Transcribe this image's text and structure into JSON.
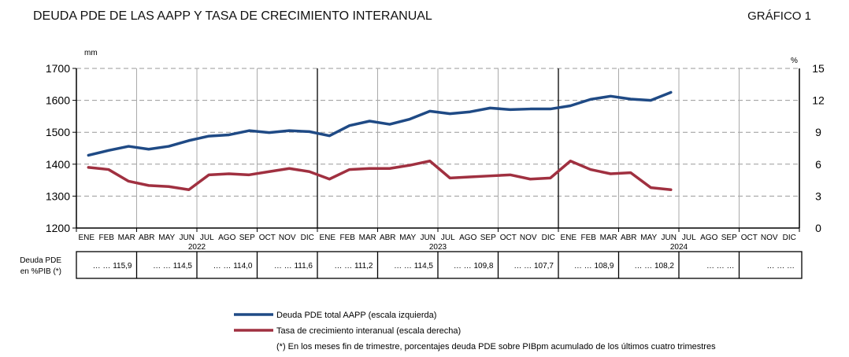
{
  "header": {
    "title": "DEUDA PDE DE LAS AAPP Y TASA DE CRECIMIENTO  INTERANUAL",
    "figure_label": "GRÁFICO 1"
  },
  "chart_data": {
    "type": "line",
    "left_unit": "mm",
    "right_unit": "%",
    "ylim_left": [
      1200,
      1700
    ],
    "yticks_left": [
      "1200",
      "1300",
      "1400",
      "1500",
      "1600",
      "1700"
    ],
    "ylim_right": [
      0,
      15
    ],
    "yticks_right": [
      "0",
      "3",
      "6",
      "9",
      "12",
      "15"
    ],
    "months": [
      "ENE",
      "FEB",
      "MAR",
      "ABR",
      "MAY",
      "JUN",
      "JUL",
      "AGO",
      "SEP",
      "OCT",
      "NOV",
      "DIC"
    ],
    "years": [
      "2022",
      "2023",
      "2024"
    ],
    "grid": "horizontal dashed, vertical quarterly",
    "series": [
      {
        "name": "Deuda PDE total AAPP (escala izquierda)",
        "axis": "left",
        "color": "#1f4a85",
        "values": [
          1428,
          1443,
          1456,
          1447,
          1456,
          1474,
          1488,
          1492,
          1505,
          1499,
          1505,
          1502,
          1489,
          1521,
          1535,
          1525,
          1541,
          1566,
          1558,
          1564,
          1576,
          1571,
          1573,
          1573,
          1583,
          1603,
          1613,
          1604,
          1600,
          1625
        ]
      },
      {
        "name": "Tasa de crecimiento interanual (escala derecha)",
        "axis": "right",
        "color": "#a03040",
        "values": [
          5.7,
          5.5,
          4.4,
          4.0,
          3.9,
          3.6,
          5.0,
          5.1,
          5.0,
          5.3,
          5.6,
          5.3,
          4.6,
          5.5,
          5.6,
          5.6,
          5.9,
          6.3,
          4.7,
          4.8,
          4.9,
          5.0,
          4.6,
          4.7,
          6.3,
          5.5,
          5.1,
          5.2,
          3.8,
          3.6
        ]
      }
    ],
    "table": {
      "row_label_1": "Deuda PDE",
      "row_label_2": "en %PIB (*)",
      "cells": [
        "… … 115,9",
        "… … 114,5",
        "… … 114,0",
        "… … 111,6",
        "… … 111,2",
        "… … 114,5",
        "… … 109,8",
        "… … 107,7",
        "… … 108,9",
        "… … 108,2",
        "… … …",
        "… … …"
      ]
    },
    "footnote": "(*) En los meses fin de trimestre, porcentajes deuda PDE sobre PIBpm acumulado de los últimos cuatro trimestres",
    "legend_placement": "bottom"
  }
}
